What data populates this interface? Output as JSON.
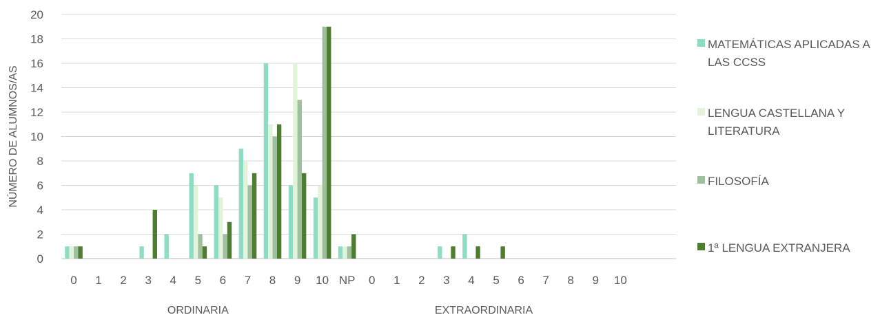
{
  "chart_data": {
    "type": "bar",
    "ylabel": "NÚMERO DE ALUMNOS/AS",
    "ylim": [
      0,
      20
    ],
    "yticks": [
      "0",
      "2",
      "4",
      "6",
      "8",
      "10",
      "12",
      "14",
      "16",
      "18",
      "20"
    ],
    "grid": true,
    "legend_position": "right",
    "groups": [
      {
        "label": "ORDINARIA",
        "categories": [
          "0",
          "1",
          "2",
          "3",
          "4",
          "5",
          "6",
          "7",
          "8",
          "9",
          "10"
        ],
        "series": [
          {
            "name": "MATEMÁTICAS APLICADAS A LAS CCSS",
            "values": [
              1,
              0,
              0,
              1,
              2,
              7,
              6,
              9,
              16,
              6,
              5
            ]
          },
          {
            "name": "LENGUA CASTELLANA Y LITERATURA",
            "values": [
              1,
              0,
              0,
              0,
              0,
              6,
              5,
              8,
              11,
              16,
              6
            ]
          },
          {
            "name": "FILOSOFÍA",
            "values": [
              1,
              0,
              0,
              0,
              0,
              2,
              2,
              6,
              10,
              13,
              19
            ]
          },
          {
            "name": "1ª LENGUA EXTRANJERA",
            "values": [
              1,
              0,
              0,
              4,
              0,
              1,
              3,
              7,
              11,
              7,
              19
            ]
          }
        ]
      },
      {
        "label": "EXTRAORDINARIA",
        "categories": [
          "NP",
          "0",
          "1",
          "2",
          "3",
          "4",
          "5",
          "6",
          "7",
          "8",
          "9",
          "10"
        ],
        "series": [
          {
            "name": "MATEMÁTICAS APLICADAS A LAS CCSS",
            "values": [
              1,
              0,
              0,
              0,
              1,
              2,
              0,
              0,
              0,
              0,
              0,
              0
            ]
          },
          {
            "name": "LENGUA CASTELLANA Y LITERATURA",
            "values": [
              1,
              0,
              0,
              0,
              0,
              0,
              0,
              0,
              0,
              0,
              0,
              0
            ]
          },
          {
            "name": "FILOSOFÍA",
            "values": [
              1,
              0,
              0,
              0,
              0,
              0,
              0,
              0,
              0,
              0,
              0,
              0
            ]
          },
          {
            "name": "1ª LENGUA EXTRANJERA",
            "values": [
              2,
              0,
              0,
              0,
              1,
              1,
              1,
              0,
              0,
              0,
              0,
              0
            ]
          }
        ]
      }
    ],
    "colors": [
      "#8fdcc4",
      "#e3f3da",
      "#9fbf9f",
      "#4e7d31"
    ],
    "legend": [
      "MATEMÁTICAS APLICADAS A LAS CCSS",
      "LENGUA CASTELLANA Y LITERATURA",
      "FILOSOFÍA",
      "1ª LENGUA EXTRANJERA"
    ]
  }
}
